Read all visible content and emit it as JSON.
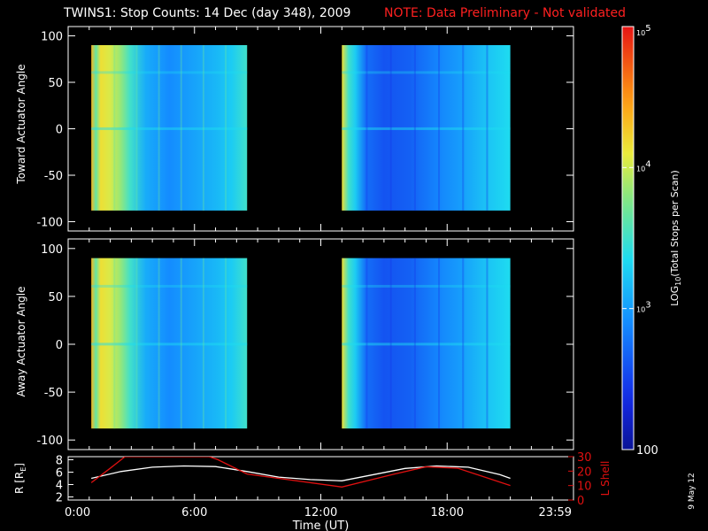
{
  "title": "TWINS1: Stop Counts: 14 Dec (day 348), 2009",
  "note": "NOTE: Data Preliminary - Not validated",
  "date_stamp": "9 May 12",
  "colors": {
    "white": "#ffffff",
    "note_red": "#ff2020",
    "lshell_red": "#e01010",
    "bg": "#000000"
  },
  "chart_data": [
    {
      "type": "heatmap",
      "ylabel": "Toward Actuator Angle",
      "ylim": [
        -110,
        110
      ],
      "yticks": [
        -100,
        -50,
        0,
        50,
        100
      ],
      "xlim": [
        0,
        24
      ],
      "segments": [
        [
          1.1,
          8.5
        ],
        [
          13.0,
          21.0
        ]
      ],
      "angle_range": [
        -88,
        90
      ]
    },
    {
      "type": "heatmap",
      "ylabel": "Away Actuator Angle",
      "ylim": [
        -110,
        110
      ],
      "yticks": [
        -100,
        -50,
        0,
        50,
        100
      ],
      "xlim": [
        0,
        24
      ],
      "segments": [
        [
          1.1,
          8.5
        ],
        [
          13.0,
          21.0
        ]
      ],
      "angle_range": [
        -88,
        90
      ]
    },
    {
      "type": "line",
      "xlabel": "Time (UT)",
      "xlim": [
        0,
        24
      ],
      "xtick_labels": [
        "0:00",
        "6:00",
        "12:00",
        "18:00",
        "23:59"
      ],
      "xtick_values": [
        0,
        6,
        12,
        18,
        24
      ],
      "ylabel": "R [R",
      "ylabel_sub": "E",
      "ylabel_close": "]",
      "ylim": [
        1.5,
        8.5
      ],
      "yticks": [
        2,
        4,
        6,
        8
      ],
      "y2label": "L Shell",
      "y2lim": [
        0,
        30
      ],
      "y2ticks": [
        0,
        10,
        20,
        30
      ],
      "series": [
        {
          "axis": "left",
          "color": "#ffffff",
          "x": [
            1.1,
            2.5,
            4.0,
            5.5,
            7.0,
            8.5,
            10.0,
            11.5,
            13.0,
            14.5,
            16.0,
            17.5,
            19.0,
            20.5,
            21.0
          ],
          "y": [
            5.0,
            6.1,
            6.8,
            7.0,
            6.9,
            6.1,
            5.2,
            4.8,
            4.6,
            5.6,
            6.6,
            7.0,
            6.8,
            5.6,
            5.0
          ]
        },
        {
          "axis": "right",
          "color": "#e01010",
          "x": [
            1.1,
            2.0,
            2.7,
            6.7,
            7.1,
            8.5,
            13.0,
            15.5,
            17.0,
            18.5,
            21.0
          ],
          "y": [
            12,
            22,
            30,
            30,
            28,
            18,
            9,
            18,
            23,
            22,
            10
          ]
        }
      ]
    }
  ],
  "colorbar": {
    "label_pre": "LOG",
    "label_sub": "10",
    "label_post": "(Total Stops per Scan)",
    "tick_top": "10",
    "tick_top_exp": "5",
    "tick_mid": "10",
    "tick_mid_exp": "4",
    "tick_low": "10",
    "tick_low_exp": "3",
    "tick_bottom": "100",
    "values": [
      100,
      1000,
      10000,
      100000
    ]
  }
}
